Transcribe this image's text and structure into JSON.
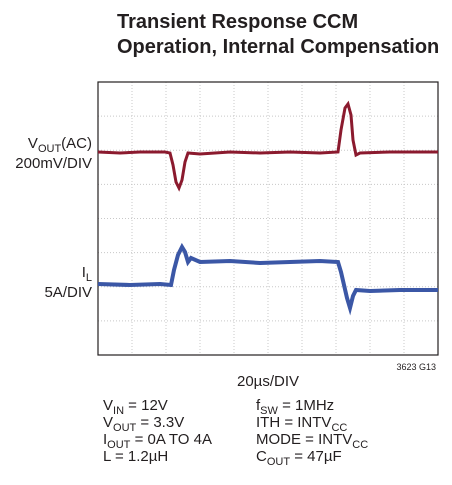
{
  "chart_data": {
    "type": "line",
    "title": [
      "Transient Response CCM",
      "Operation, Internal Compensation"
    ],
    "channels": [
      {
        "label": [
          "V",
          "OUT",
          "(AC)"
        ],
        "scale": "200mV/DIV"
      },
      {
        "label": [
          "I",
          "L"
        ],
        "scale": "5A/DIV"
      }
    ],
    "x_label": "20µs/DIV",
    "figure_id": "3623 G13",
    "conditions": [
      [
        [
          "V",
          "IN",
          " = 12V"
        ],
        [
          "V",
          "OUT",
          " = 3.3V"
        ],
        [
          "I",
          "OUT",
          " = 0A TO 4A"
        ],
        [
          "L = 1.2µH"
        ]
      ],
      [
        [
          "f",
          "SW",
          " = 1MHz"
        ],
        [
          "ITH = INTV",
          "CC"
        ],
        [
          "MODE = INTV",
          "CC"
        ],
        [
          "C",
          "OUT",
          " = 47µF"
        ]
      ]
    ]
  }
}
